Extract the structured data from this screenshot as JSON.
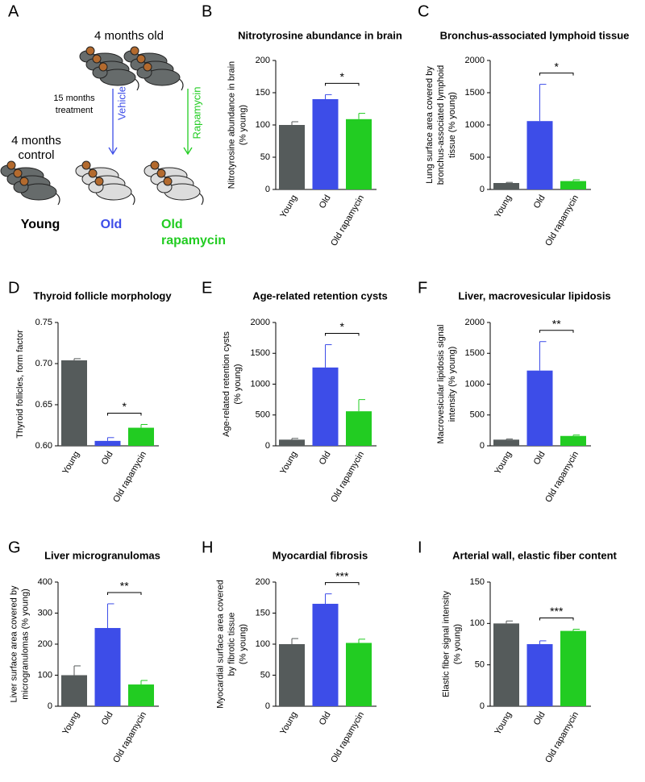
{
  "diagram": {
    "panel_label": "A",
    "top_label": "4 months old",
    "treatment": [
      "15 months",
      "treatment"
    ],
    "vehicle": "Vehicle",
    "rapamycin": "Rapamycin",
    "control": [
      "4 months",
      "control"
    ],
    "young": "Young",
    "old": "Old",
    "old_rapamycin": [
      "Old",
      "rapamycin"
    ]
  },
  "chart_data": [
    {
      "type": "bar",
      "panel_label": "B",
      "title": "Nitrotyrosine abundance in brain",
      "ylabel": [
        "Nitrotyrosine abundance in brain",
        "(% young)"
      ],
      "categories": [
        "Young",
        "Old",
        "Old rapamycin"
      ],
      "values": [
        100,
        140,
        109
      ],
      "errors": [
        5,
        7,
        9
      ],
      "colors": [
        "#555b5b",
        "#3d4de8",
        "#22cc22"
      ],
      "ylim": [
        0,
        200
      ],
      "yticks": [
        0,
        50,
        100,
        150,
        200
      ],
      "significance": "*"
    },
    {
      "type": "bar",
      "panel_label": "C",
      "title": "Bronchus-associated lymphoid tissue",
      "ylabel": [
        "Lung surface area covered by",
        "bronchus-associated lymphoid",
        "tissue (% young)"
      ],
      "categories": [
        "Young",
        "Old",
        "Old rapamycin"
      ],
      "values": [
        100,
        1060,
        130
      ],
      "errors": [
        10,
        570,
        20
      ],
      "colors": [
        "#555b5b",
        "#3d4de8",
        "#22cc22"
      ],
      "ylim": [
        0,
        2000
      ],
      "yticks": [
        0,
        500,
        1000,
        1500,
        2000
      ],
      "significance": "*"
    },
    {
      "type": "bar",
      "panel_label": "D",
      "title": "Thyroid follicle morphology",
      "ylabel": [
        "Thyroid follicles, form factor"
      ],
      "categories": [
        "Young",
        "Old",
        "Old rapamycin"
      ],
      "values": [
        0.704,
        0.606,
        0.622
      ],
      "errors": [
        0.002,
        0.004,
        0.004
      ],
      "colors": [
        "#555b5b",
        "#3d4de8",
        "#22cc22"
      ],
      "ylim": [
        0.6,
        0.75
      ],
      "yticks": [
        {
          "value": 0.6,
          "label": "0.60"
        },
        0.65,
        {
          "value": 0.7,
          "label": "0.70"
        },
        0.75
      ],
      "significance": "*"
    },
    {
      "type": "bar",
      "panel_label": "E",
      "title": "Age-related retention cysts",
      "ylabel": [
        "Age-related retention cysts",
        "(% young)"
      ],
      "categories": [
        "Young",
        "Old",
        "Old rapamycin"
      ],
      "values": [
        100,
        1270,
        560
      ],
      "errors": [
        20,
        370,
        190
      ],
      "colors": [
        "#555b5b",
        "#3d4de8",
        "#22cc22"
      ],
      "ylim": [
        0,
        2000
      ],
      "yticks": [
        0,
        500,
        1000,
        1500,
        2000
      ],
      "significance": "*"
    },
    {
      "type": "bar",
      "panel_label": "F",
      "title": "Liver, macrovesicular lipidosis",
      "ylabel": [
        "Macrovesicular lipidosis signal",
        "intensity (% young)"
      ],
      "categories": [
        "Young",
        "Old",
        "Old rapamycin"
      ],
      "values": [
        100,
        1220,
        160
      ],
      "errors": [
        10,
        470,
        15
      ],
      "colors": [
        "#555b5b",
        "#3d4de8",
        "#22cc22"
      ],
      "ylim": [
        0,
        2000
      ],
      "yticks": [
        0,
        500,
        1000,
        1500,
        2000
      ],
      "significance": "**"
    },
    {
      "type": "bar",
      "panel_label": "G",
      "title": "Liver microgranulomas",
      "ylabel": [
        "Liver surface area covered by",
        "microgranulomas (% young)"
      ],
      "categories": [
        "Young",
        "Old",
        "Old rapamycin"
      ],
      "values": [
        100,
        252,
        70
      ],
      "errors": [
        30,
        78,
        13
      ],
      "colors": [
        "#555b5b",
        "#3d4de8",
        "#22cc22"
      ],
      "ylim": [
        0,
        400
      ],
      "yticks": [
        0,
        100,
        200,
        300,
        400
      ],
      "significance": "**"
    },
    {
      "type": "bar",
      "panel_label": "H",
      "title": "Myocardial fibrosis",
      "ylabel": [
        "Myocardial surface area covered",
        "by fibrotic tissue",
        "(% young)"
      ],
      "categories": [
        "Young",
        "Old",
        "Old rapamycin"
      ],
      "values": [
        100,
        165,
        102
      ],
      "errors": [
        9,
        16,
        6
      ],
      "colors": [
        "#555b5b",
        "#3d4de8",
        "#22cc22"
      ],
      "ylim": [
        0,
        200
      ],
      "yticks": [
        0,
        50,
        100,
        150,
        200
      ],
      "significance": "***"
    },
    {
      "type": "bar",
      "panel_label": "I",
      "title": "Arterial wall, elastic fiber content",
      "ylabel": [
        "Elastic fiber signal intensity",
        "(% young)"
      ],
      "categories": [
        "Young",
        "Old",
        "Old rapamycin"
      ],
      "values": [
        100,
        75,
        91
      ],
      "errors": [
        3,
        4,
        2
      ],
      "colors": [
        "#555b5b",
        "#3d4de8",
        "#22cc22"
      ],
      "ylim": [
        0,
        150
      ],
      "yticks": [
        0,
        50,
        100,
        150
      ],
      "significance": "***"
    }
  ]
}
